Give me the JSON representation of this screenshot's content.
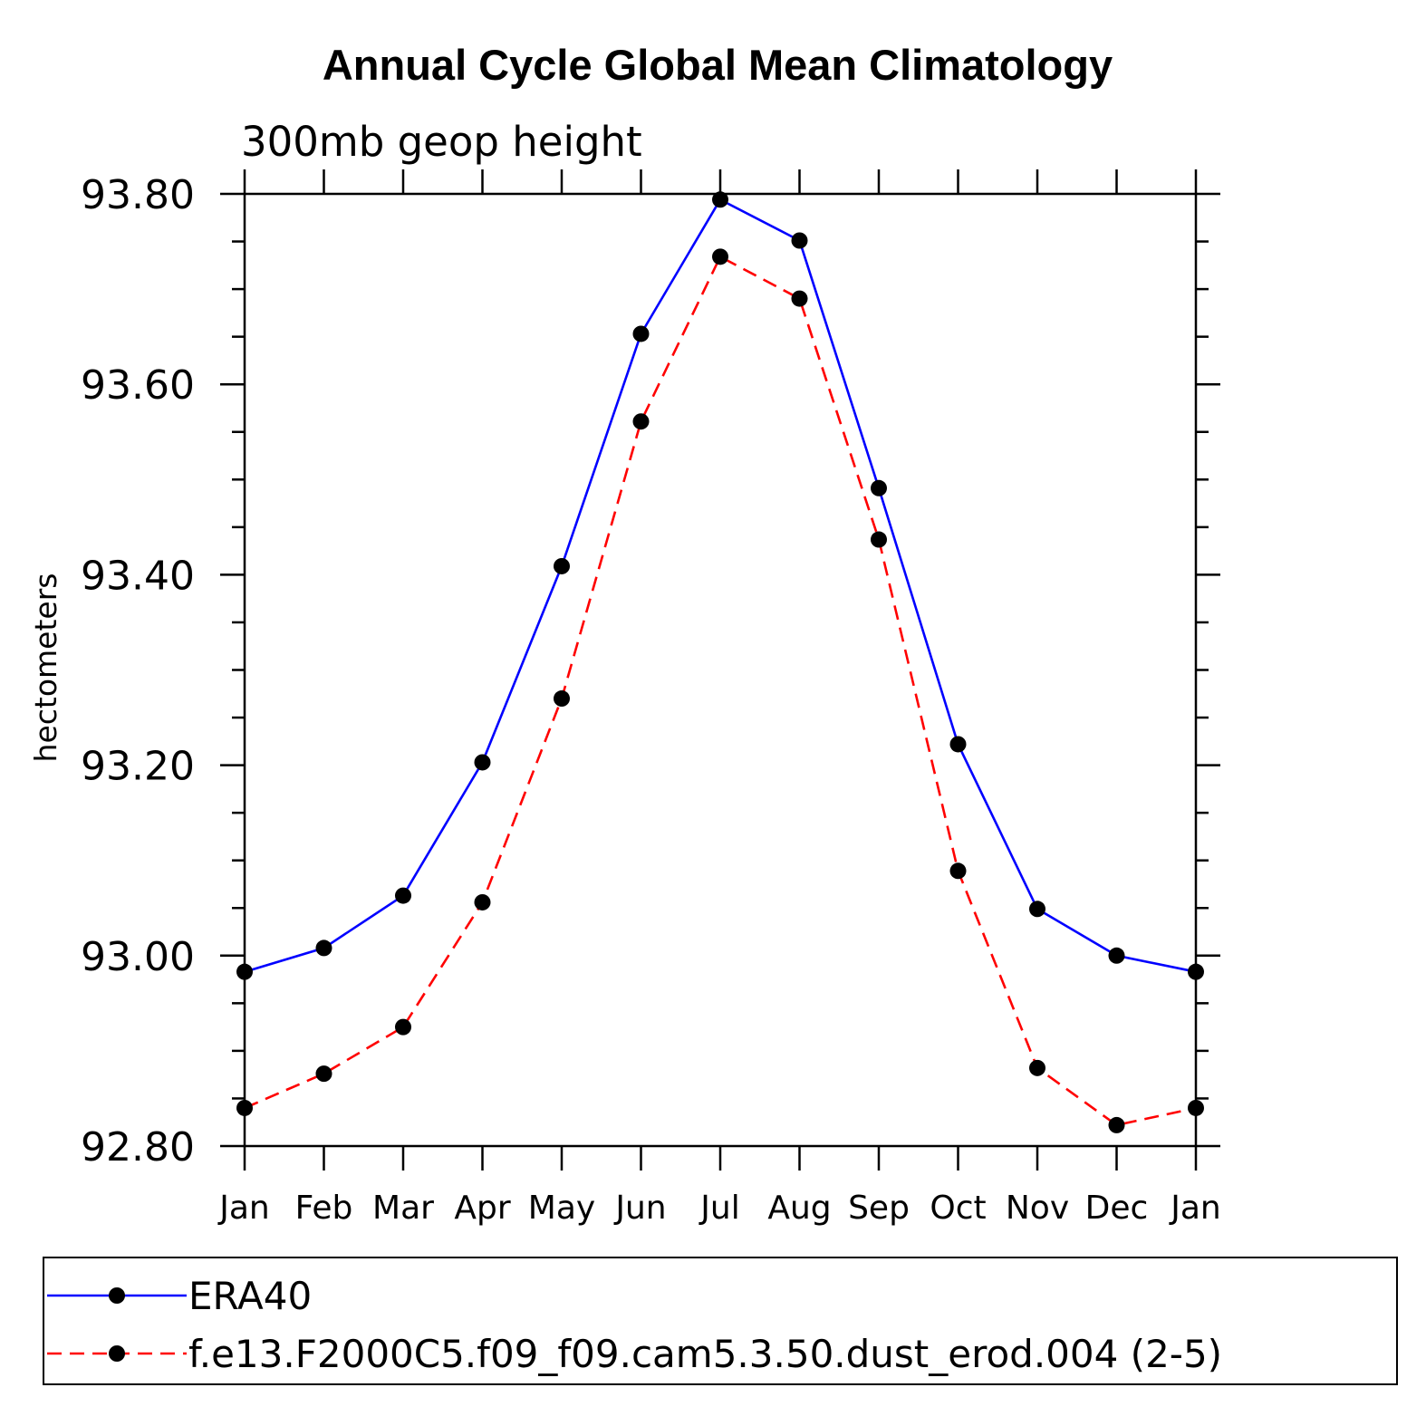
{
  "chart_data": {
    "type": "line",
    "title": "Annual Cycle Global Mean Climatology",
    "subtitle": "300mb geop height",
    "xlabel": "",
    "ylabel": "hectometers",
    "categories": [
      "Jan",
      "Feb",
      "Mar",
      "Apr",
      "May",
      "Jun",
      "Jul",
      "Aug",
      "Sep",
      "Oct",
      "Nov",
      "Dec",
      "Jan"
    ],
    "ylim": [
      92.8,
      93.8
    ],
    "y_ticks": [
      92.8,
      93.0,
      93.2,
      93.4,
      93.6,
      93.8
    ],
    "y_tick_labels": [
      "92.80",
      "93.00",
      "93.20",
      "93.40",
      "93.60",
      "93.80"
    ],
    "y_minor_step": 0.05,
    "grid": false,
    "legend_position": "bottom",
    "series": [
      {
        "name": "ERA40",
        "color": "#0000ff",
        "line_style": "solid",
        "marker": "filled-circle",
        "values": [
          92.983,
          93.008,
          93.063,
          93.203,
          93.409,
          93.653,
          93.794,
          93.751,
          93.491,
          93.222,
          93.049,
          93.0,
          92.983
        ]
      },
      {
        "name": "f.e13.F2000C5.f09_f09.cam5.3.50.dust_erod.004 (2-5)",
        "color": "#ff0000",
        "line_style": "dashed",
        "marker": "filled-circle",
        "values": [
          92.84,
          92.876,
          92.925,
          93.056,
          93.27,
          93.561,
          93.734,
          93.69,
          93.437,
          93.089,
          92.882,
          92.822,
          92.84
        ]
      }
    ]
  }
}
